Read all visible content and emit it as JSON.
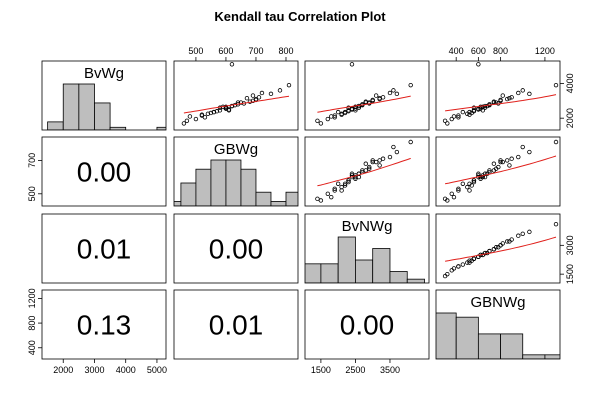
{
  "chart_data": {
    "type": "scatter-matrix",
    "title": "Kendall tau Correlation Plot",
    "point_color": "#000000",
    "smooth_color": "#e0201b",
    "hist_color": "#bebebe",
    "variables": [
      {
        "name": "BvWg",
        "lim": [
          1320,
          5290
        ],
        "xticks": [
          2000,
          3000,
          4000,
          5000
        ],
        "yticks": [
          2000,
          4000
        ],
        "hist": {
          "bins": [
            1500,
            2000,
            2500,
            3000,
            3500,
            4000,
            4500,
            5000,
            5500
          ],
          "counts": [
            3,
            17,
            17,
            10,
            1,
            0,
            0,
            1
          ]
        },
        "values": [
          2200,
          2450,
          2600,
          2100,
          2900,
          3100,
          2350,
          2700,
          2550,
          3300,
          1850,
          2050,
          2800,
          3450,
          2650,
          2300,
          2950,
          3600,
          2400,
          2750,
          1950,
          3200,
          2500,
          2850,
          3050,
          2250,
          2600,
          3400,
          2150,
          2700,
          3900,
          2450,
          3150,
          2550,
          2350,
          2900,
          5100,
          2650,
          3000,
          1700
        ]
      },
      {
        "name": "GBWg",
        "lim": [
          427,
          840
        ],
        "xticks": [
          500,
          600,
          700,
          800
        ],
        "yticks": [
          500,
          700
        ],
        "hist": {
          "bins": [
            400,
            450,
            500,
            550,
            600,
            650,
            700,
            750,
            800,
            850
          ],
          "counts": [
            1,
            5,
            8,
            10,
            10,
            8,
            3,
            1,
            3
          ]
        },
        "values": [
          520,
          610,
          580,
          480,
          650,
          700,
          560,
          620,
          600,
          690,
          470,
          530,
          640,
          720,
          590,
          550,
          680,
          780,
          570,
          630,
          500,
          710,
          610,
          660,
          700,
          540,
          600,
          750,
          520,
          620,
          810,
          580,
          670,
          600,
          560,
          640,
          620,
          600,
          690,
          460
        ]
      },
      {
        "name": "BvNWg",
        "lim": [
          1040,
          4630
        ],
        "xticks": [
          1500,
          2500,
          3500
        ],
        "yticks": [
          1500,
          3000
        ],
        "hist": {
          "bins": [
            1000,
            1500,
            2000,
            2500,
            3000,
            3500,
            4000,
            4500
          ],
          "counts": [
            5,
            5,
            12,
            6,
            9,
            3,
            1
          ]
        },
        "values": [
          2100,
          2500,
          2300,
          1800,
          2900,
          3200,
          2000,
          2600,
          2400,
          3100,
          1400,
          1900,
          2700,
          3500,
          2500,
          2200,
          2800,
          3600,
          2300,
          2700,
          1700,
          3300,
          2400,
          2900,
          3000,
          2100,
          2600,
          3700,
          1900,
          2600,
          4100,
          2300,
          3200,
          2500,
          2200,
          2800,
          2400,
          2500,
          3000,
          1500
        ]
      },
      {
        "name": "GBNWg",
        "lim": [
          218,
          1336
        ],
        "xticks": [
          400,
          600,
          800,
          1200
        ],
        "yticks": [
          400,
          800,
          1200
        ],
        "hist": {
          "bins": [
            200,
            400,
            600,
            800,
            1000,
            1200,
            1400
          ],
          "counts": [
            11,
            10,
            6,
            6,
            1,
            1
          ]
        },
        "values": [
          520,
          640,
          560,
          380,
          760,
          860,
          460,
          680,
          600,
          820,
          300,
          420,
          700,
          960,
          620,
          540,
          740,
          1000,
          560,
          700,
          360,
          900,
          600,
          780,
          800,
          500,
          660,
          1060,
          420,
          660,
          1300,
          560,
          880,
          620,
          520,
          740,
          600,
          640,
          800,
          320
        ]
      }
    ],
    "lower": [
      [
        "0.00"
      ],
      [
        "0.01",
        "0.00"
      ],
      [
        "0.13",
        "0.01",
        "0.00"
      ]
    ]
  }
}
